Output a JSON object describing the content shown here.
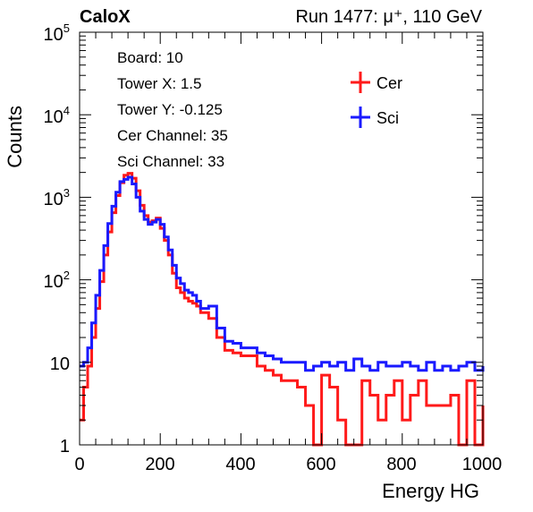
{
  "header": {
    "brand": "CaloX",
    "run_info": "Run 1477:   μ⁺, 110 GeV"
  },
  "info_box": [
    "Board: 10",
    "Tower X: 1.5",
    "Tower Y: -0.125",
    "Cer Channel: 35",
    "Sci Channel: 33"
  ],
  "chart_data": {
    "type": "line",
    "title": "",
    "xlabel": "Energy HG",
    "ylabel": "Counts",
    "xlim": [
      0,
      1000
    ],
    "ylim": [
      1,
      100000
    ],
    "y_scale": "log",
    "grid": false,
    "legend_placement": "top-right",
    "x_ticks": [
      "0",
      "200",
      "400",
      "600",
      "800",
      "1000"
    ],
    "y_ticks": [
      {
        "base": "1",
        "exp": ""
      },
      {
        "base": "10",
        "exp": ""
      },
      {
        "base": "10",
        "exp": "2"
      },
      {
        "base": "10",
        "exp": "3"
      },
      {
        "base": "10",
        "exp": "4"
      },
      {
        "base": "10",
        "exp": "5"
      }
    ],
    "series": [
      {
        "name": "Cer",
        "color": "#ff1a1a",
        "x": [
          0,
          10,
          20,
          30,
          40,
          50,
          60,
          70,
          80,
          90,
          100,
          110,
          120,
          130,
          140,
          150,
          160,
          170,
          180,
          190,
          200,
          210,
          220,
          230,
          240,
          250,
          260,
          270,
          280,
          290,
          300,
          320,
          340,
          360,
          380,
          400,
          420,
          440,
          460,
          480,
          500,
          520,
          540,
          560,
          580,
          600,
          620,
          640,
          660,
          680,
          700,
          720,
          740,
          760,
          780,
          800,
          820,
          840,
          860,
          880,
          900,
          920,
          940,
          960,
          980,
          1000
        ],
        "y": [
          2,
          5,
          9,
          20,
          45,
          95,
          200,
          380,
          650,
          1050,
          1500,
          1850,
          1950,
          1700,
          1200,
          800,
          600,
          500,
          520,
          560,
          420,
          300,
          200,
          120,
          80,
          70,
          60,
          55,
          52,
          48,
          40,
          34,
          20,
          14,
          13,
          12,
          12,
          9,
          8,
          7,
          6,
          6,
          5,
          3,
          1,
          7,
          5,
          2,
          1,
          1,
          6,
          4,
          2,
          4,
          6,
          2,
          4,
          6,
          3,
          3,
          3,
          4,
          1,
          6,
          1,
          3
        ]
      },
      {
        "name": "Sci",
        "color": "#1a1aff",
        "x": [
          0,
          10,
          20,
          30,
          40,
          50,
          60,
          70,
          80,
          90,
          100,
          110,
          120,
          130,
          140,
          150,
          160,
          170,
          180,
          190,
          200,
          210,
          220,
          230,
          240,
          250,
          260,
          270,
          280,
          290,
          300,
          320,
          340,
          360,
          380,
          400,
          420,
          440,
          460,
          480,
          500,
          520,
          540,
          560,
          580,
          600,
          620,
          640,
          660,
          680,
          700,
          720,
          740,
          760,
          780,
          800,
          820,
          840,
          860,
          880,
          900,
          920,
          940,
          960,
          980,
          1000
        ],
        "y": [
          9,
          10,
          15,
          30,
          65,
          130,
          260,
          480,
          780,
          1150,
          1550,
          1650,
          1750,
          1450,
          1000,
          680,
          540,
          470,
          500,
          540,
          470,
          330,
          230,
          150,
          105,
          90,
          75,
          70,
          65,
          55,
          45,
          48,
          26,
          18,
          17,
          15,
          15,
          13,
          12,
          11,
          10,
          10,
          10,
          8,
          9,
          10,
          9,
          10,
          8,
          11,
          9,
          8,
          10,
          9,
          9,
          10,
          9,
          8,
          10,
          8,
          9,
          8,
          9,
          10,
          8,
          9
        ]
      }
    ]
  }
}
